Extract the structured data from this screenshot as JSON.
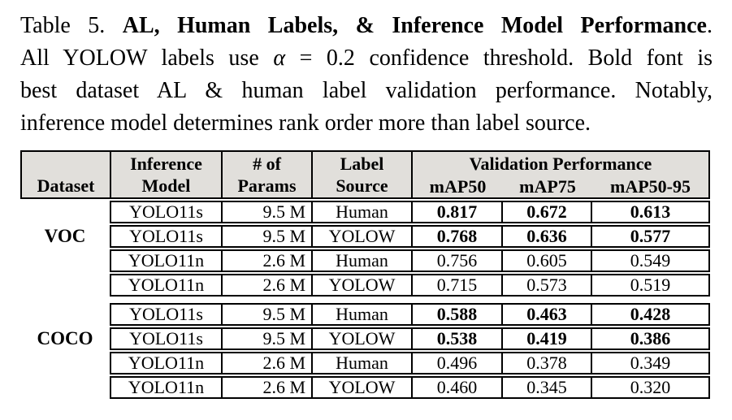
{
  "caption": {
    "line1_prefix": "Table 5. ",
    "line1_bold": "AL, Human Labels, & Inference Model Performance",
    "line1_suffix": ".",
    "line2_pre": "All YOLOW labels use ",
    "line2_alpha": "α",
    "line2_post": " = 0.2 confidence threshold. Bold font is",
    "line3": "best dataset AL & human label validation performance. Notably,",
    "line4": "inference model determines rank order more than label source."
  },
  "table": {
    "headers": {
      "dataset": "Dataset",
      "inference_model_line1": "Inference",
      "inference_model_line2": "Model",
      "params_line1": "# of",
      "params_line2": "Params",
      "label_source_line1": "Label",
      "label_source_line2": "Source",
      "validation_performance": "Validation Performance",
      "map50": "mAP50",
      "map75": "mAP75",
      "map50_95": "mAP50-95"
    },
    "sections": [
      {
        "dataset": "VOC",
        "rows": [
          {
            "model": "YOLO11s",
            "params": "9.5 M",
            "label_source": "Human",
            "map50": "0.817",
            "map75": "0.672",
            "map50_95": "0.613",
            "bold": true
          },
          {
            "model": "YOLO11s",
            "params": "9.5 M",
            "label_source": "YOLOW",
            "map50": "0.768",
            "map75": "0.636",
            "map50_95": "0.577",
            "bold": true
          },
          {
            "model": "YOLO11n",
            "params": "2.6 M",
            "label_source": "Human",
            "map50": "0.756",
            "map75": "0.605",
            "map50_95": "0.549",
            "bold": false
          },
          {
            "model": "YOLO11n",
            "params": "2.6 M",
            "label_source": "YOLOW",
            "map50": "0.715",
            "map75": "0.573",
            "map50_95": "0.519",
            "bold": false
          }
        ]
      },
      {
        "dataset": "COCO",
        "rows": [
          {
            "model": "YOLO11s",
            "params": "9.5 M",
            "label_source": "Human",
            "map50": "0.588",
            "map75": "0.463",
            "map50_95": "0.428",
            "bold": true
          },
          {
            "model": "YOLO11s",
            "params": "9.5 M",
            "label_source": "YOLOW",
            "map50": "0.538",
            "map75": "0.419",
            "map50_95": "0.386",
            "bold": true
          },
          {
            "model": "YOLO11n",
            "params": "2.6 M",
            "label_source": "Human",
            "map50": "0.496",
            "map75": "0.378",
            "map50_95": "0.349",
            "bold": false
          },
          {
            "model": "YOLO11n",
            "params": "2.6 M",
            "label_source": "YOLOW",
            "map50": "0.460",
            "map75": "0.345",
            "map50_95": "0.320",
            "bold": false
          }
        ]
      }
    ]
  },
  "colors": {
    "header_bg": "#e1dfdb",
    "border": "#000000",
    "text": "#000000",
    "page_bg": "#ffffff"
  }
}
